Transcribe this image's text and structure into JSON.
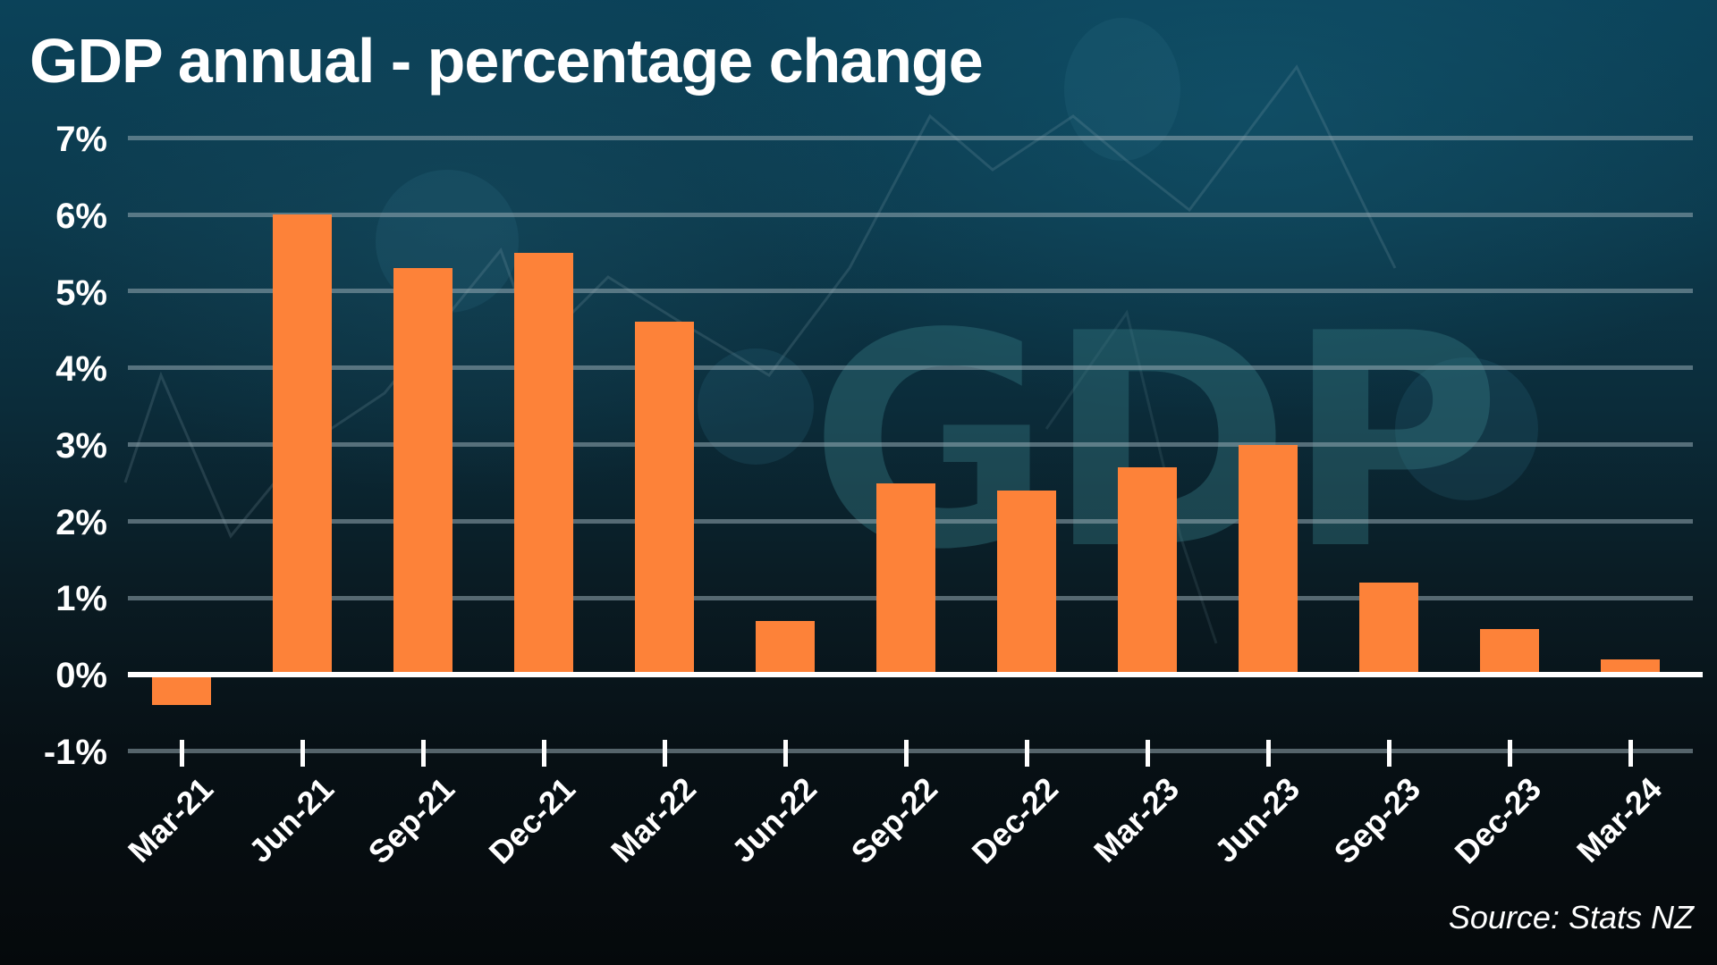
{
  "title": "GDP annual - percentage change",
  "source": "Source: Stats NZ",
  "watermark": "GDP",
  "colors": {
    "bar": "#fd8239",
    "background_top": "#0b4259",
    "background_bottom": "#05090b",
    "gridline": "#8ea4ad",
    "text": "#ffffff"
  },
  "y_axis": {
    "ticks": [
      "7%",
      "6%",
      "5%",
      "4%",
      "3%",
      "2%",
      "1%",
      "0%",
      "-1%"
    ]
  },
  "x_axis": {
    "labels": [
      "Mar-21",
      "Jun-21",
      "Sep-21",
      "Dec-21",
      "Mar-22",
      "Jun-22",
      "Sep-22",
      "Dec-22",
      "Mar-23",
      "Jun-23",
      "Sep-23",
      "Dec-23",
      "Mar-24"
    ]
  },
  "chart_data": {
    "type": "bar",
    "title": "GDP annual - percentage change",
    "xlabel": "",
    "ylabel": "",
    "categories": [
      "Mar-21",
      "Jun-21",
      "Sep-21",
      "Dec-21",
      "Mar-22",
      "Jun-22",
      "Sep-22",
      "Dec-22",
      "Mar-23",
      "Jun-23",
      "Sep-23",
      "Dec-23",
      "Mar-24"
    ],
    "values": [
      -0.4,
      6.0,
      5.3,
      5.5,
      4.6,
      0.7,
      2.5,
      2.4,
      2.7,
      3.0,
      1.2,
      0.6,
      0.2
    ],
    "ylim": [
      -1,
      7
    ],
    "y_ticks": [
      -1,
      0,
      1,
      2,
      3,
      4,
      5,
      6,
      7
    ],
    "y_tick_format": "percent",
    "grid": true,
    "legend": null,
    "annotations": [
      "Source: Stats NZ"
    ],
    "bar_color": "#fd8239"
  }
}
